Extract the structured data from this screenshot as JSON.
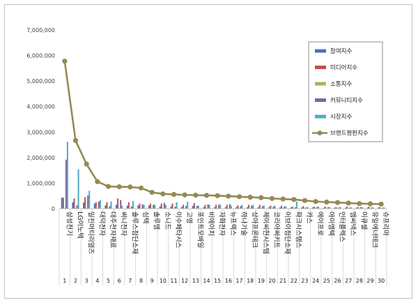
{
  "chart_data": {
    "type": "bar",
    "title": "",
    "xlabel": "",
    "ylabel": "",
    "ylim": [
      0,
      7000000
    ],
    "yticks": [
      "0",
      "1,000,000",
      "2,000,000",
      "3,000,000",
      "4,000,000",
      "5,000,000",
      "6,000,000",
      "7,000,000"
    ],
    "grid": false,
    "legend_position": "right",
    "ranks": [
      "1",
      "2",
      "3",
      "4",
      "5",
      "6",
      "7",
      "8",
      "9",
      "10",
      "11",
      "12",
      "13",
      "14",
      "15",
      "16",
      "17",
      "18",
      "19",
      "20",
      "21",
      "22",
      "23",
      "24",
      "25",
      "26",
      "27",
      "28",
      "29",
      "30"
    ],
    "categories": [
      "삼성전기",
      "LG이노텍",
      "일진머티리얼즈",
      "대덕전자",
      "대주전자재료",
      "써니전자",
      "솔루스첨단소재",
      "심텍",
      "솔루엠",
      "소니드",
      "이수페타시스",
      "고영",
      "포인트모바일",
      "비에이치",
      "자화전자",
      "뉴프렉스",
      "하나기술",
      "상아프론테크",
      "제이씨현시스템",
      "코리아써키트",
      "이브이첨단소재",
      "파크시스템스",
      "카스",
      "에이프로",
      "아이엠텍",
      "인터플렉스",
      "엠씨넥스",
      "이큐셀",
      "유일에너테크",
      "슈프리마"
    ],
    "series": [
      {
        "name": "참여지수",
        "color": "#4472c4",
        "values": [
          430000,
          250000,
          240000,
          200000,
          130000,
          160000,
          120000,
          130000,
          130000,
          90000,
          80000,
          70000,
          110000,
          60000,
          60000,
          60000,
          60000,
          60000,
          60000,
          60000,
          50000,
          50000,
          50000,
          50000,
          40000,
          40000,
          40000,
          40000,
          40000,
          40000
        ]
      },
      {
        "name": "미디어지수",
        "color": "#c0504d",
        "values": [
          430000,
          400000,
          450000,
          250000,
          250000,
          400000,
          250000,
          200000,
          200000,
          200000,
          200000,
          150000,
          220000,
          150000,
          150000,
          150000,
          130000,
          150000,
          150000,
          120000,
          120000,
          80000,
          100000,
          80000,
          80000,
          60000,
          80000,
          70000,
          80000,
          60000
        ]
      },
      {
        "name": "소통지수",
        "color": "#9bbb59",
        "values": [
          30000,
          30000,
          30000,
          20000,
          20000,
          20000,
          20000,
          20000,
          20000,
          20000,
          20000,
          20000,
          20000,
          20000,
          20000,
          20000,
          20000,
          20000,
          20000,
          20000,
          20000,
          20000,
          20000,
          20000,
          20000,
          20000,
          20000,
          20000,
          20000,
          20000
        ]
      },
      {
        "name": "커뮤니티지수",
        "color": "#8064a2",
        "values": [
          1920000,
          130000,
          520000,
          280000,
          100000,
          340000,
          90000,
          170000,
          150000,
          230000,
          80000,
          110000,
          110000,
          170000,
          150000,
          180000,
          100000,
          120000,
          100000,
          80000,
          80000,
          60000,
          50000,
          70000,
          60000,
          50000,
          50000,
          60000,
          50000,
          40000
        ]
      },
      {
        "name": "시장지수",
        "color": "#4bacc6",
        "values": [
          2620000,
          1540000,
          700000,
          330000,
          280000,
          120000,
          300000,
          150000,
          160000,
          150000,
          250000,
          280000,
          120000,
          150000,
          160000,
          120000,
          150000,
          150000,
          120000,
          120000,
          100000,
          280000,
          70000,
          80000,
          70000,
          60000,
          50000,
          60000,
          50000,
          50000
        ]
      },
      {
        "name": "브랜드평판지수",
        "color": "#948a54",
        "values": [
          5780000,
          2670000,
          1750000,
          1060000,
          870000,
          860000,
          850000,
          810000,
          640000,
          580000,
          560000,
          540000,
          530000,
          520000,
          510000,
          490000,
          470000,
          450000,
          430000,
          400000,
          380000,
          360000,
          320000,
          280000,
          260000,
          240000,
          220000,
          200000,
          190000,
          180000
        ]
      }
    ]
  }
}
